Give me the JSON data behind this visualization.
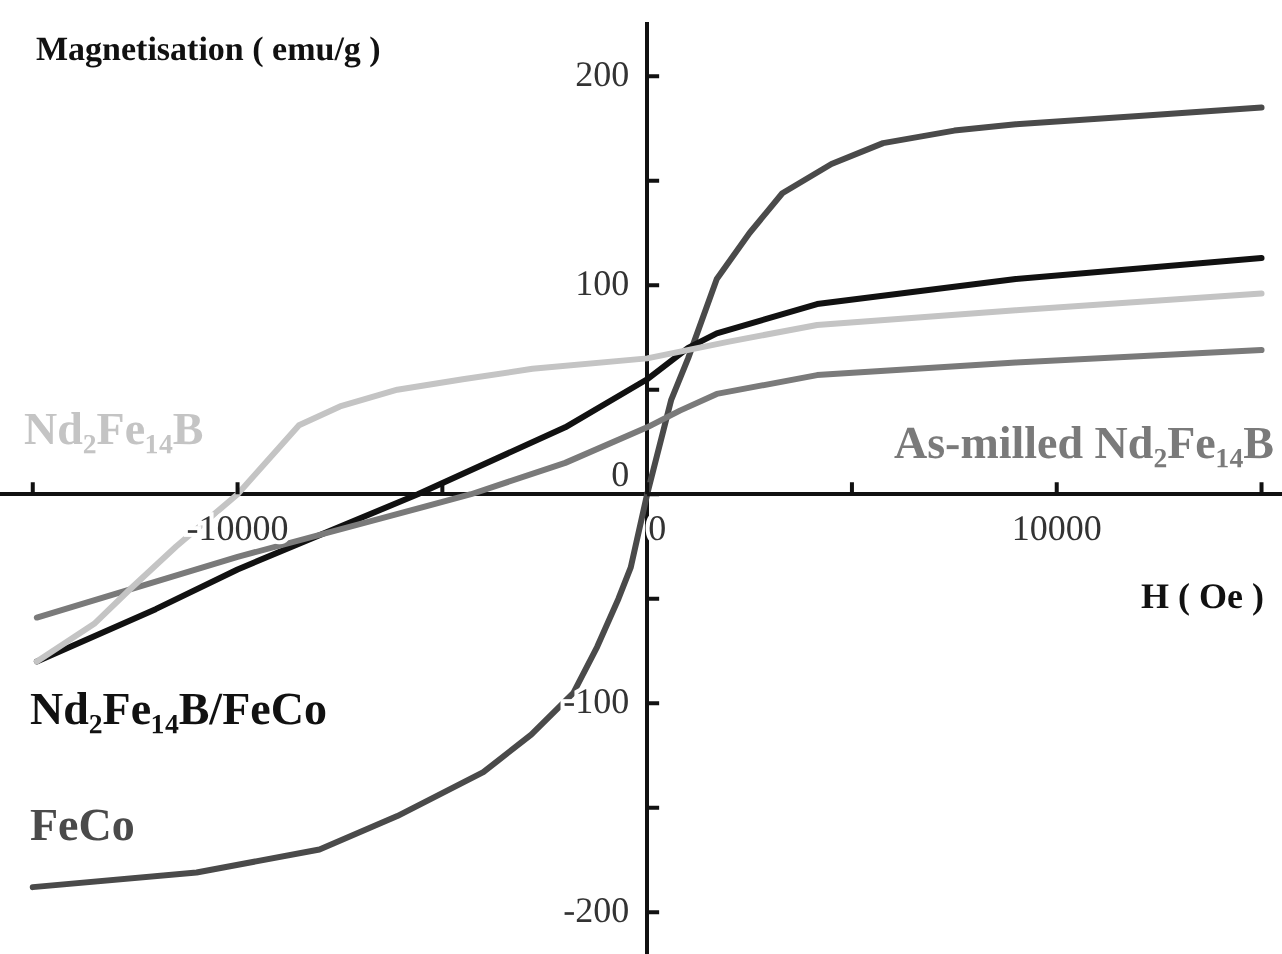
{
  "chart_data": {
    "type": "line",
    "xlabel": "H ( Oe )",
    "ylabel": "Magnetisation ( emu/g )",
    "xlim": [
      -15800,
      15500
    ],
    "ylim": [
      -220,
      225
    ],
    "xticks": [
      {
        "value": -15000,
        "label": null
      },
      {
        "value": -10000,
        "label": "-10000"
      },
      {
        "value": -5000,
        "label": null
      },
      0,
      {
        "value": 5000,
        "label": null
      },
      {
        "value": 10000,
        "label": "10000"
      },
      {
        "value": 15000,
        "label": null
      }
    ],
    "yticks": [
      -200,
      {
        "value": -150,
        "label": null
      },
      -100,
      {
        "value": -50,
        "label": null
      },
      0,
      {
        "value": 50,
        "label": null
      },
      100,
      {
        "value": 150,
        "label": null
      },
      200
    ],
    "grid": false,
    "legend": false,
    "marker": "none",
    "line_style": "solid",
    "series": [
      {
        "name": "Nd₂Fe₁₄B",
        "color": "#c4c4c4",
        "x": [
          -14900,
          -13500,
          -12600,
          -11500,
          -10000,
          -9000,
          -8500,
          -7500,
          -6100,
          -4500,
          -2800,
          0,
          2000,
          4150,
          9000,
          15000
        ],
        "values": [
          -80,
          -62,
          -45,
          -25,
          0,
          22,
          33,
          42,
          50,
          55,
          60,
          65,
          73,
          81,
          88,
          96
        ]
      },
      {
        "name": "As-milled Nd₂Fe₁₄B",
        "color": "#7a7a7a",
        "x": [
          -14900,
          -10000,
          -4300,
          -2000,
          0,
          800,
          1700,
          4150,
          9000,
          15000
        ],
        "values": [
          -59,
          -30,
          0,
          15,
          32,
          40,
          48,
          57,
          63,
          69
        ]
      },
      {
        "name": "Nd₂Fe₁₄B/FeCo",
        "color": "#111111",
        "x": [
          -14900,
          -12000,
          -10000,
          -5600,
          -2000,
          0,
          1000,
          1700,
          4150,
          9000,
          15000
        ],
        "values": [
          -80,
          -55,
          -36,
          0,
          32,
          55,
          70,
          77,
          91,
          103,
          113
        ]
      },
      {
        "name": "FeCo",
        "color": "#4a4a4a",
        "x": [
          -15000,
          -11000,
          -8000,
          -6100,
          -4000,
          -2830,
          -1800,
          -1220,
          -700,
          -400,
          0,
          585,
          1000,
          1700,
          2500,
          3300,
          4500,
          5760,
          7500,
          9000,
          12000,
          15000
        ],
        "values": [
          -188,
          -181,
          -170,
          -154,
          -133,
          -115,
          -95,
          -73,
          -50,
          -35,
          0,
          45,
          65,
          103,
          125,
          144,
          158,
          168,
          174,
          177,
          181,
          185
        ]
      }
    ]
  }
}
